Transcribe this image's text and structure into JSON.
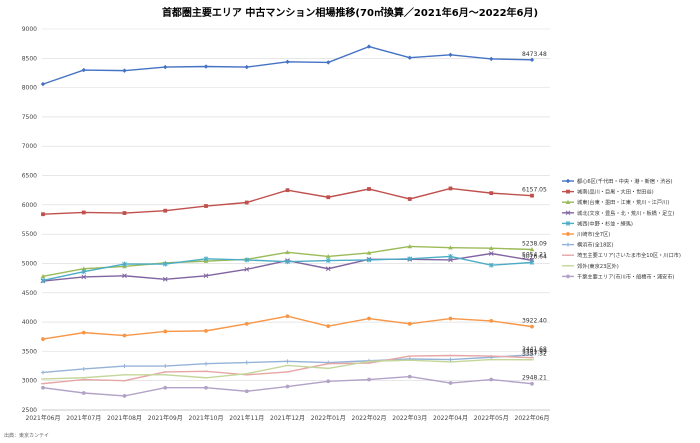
{
  "chart_data": {
    "type": "line",
    "title": "首都圏主要エリア 中古マンション相場推移(70㎡換算／2021年6月～2022年6月)",
    "xlabel": "",
    "ylabel": "",
    "ylim": [
      2500,
      9000
    ],
    "yticks": [
      "2500",
      "3000",
      "3500",
      "4000",
      "4500",
      "5000",
      "5500",
      "6000",
      "6500",
      "7000",
      "7500",
      "8000",
      "8500",
      "9000"
    ],
    "grid": true,
    "legend_position": "right",
    "categories": [
      "2021年06月",
      "2021年07月",
      "2021年08月",
      "2021年09月",
      "2021年10月",
      "2021年11月",
      "2021年12月",
      "2022年01月",
      "2022年02月",
      "2022年03月",
      "2022年04月",
      "2022年05月",
      "2022年06月"
    ],
    "series": [
      {
        "name": "都心6区(千代田・中央・港・新宿・渋谷)",
        "color": "#4472c4",
        "marker": "diamond",
        "values": [
          8060,
          8300,
          8290,
          8350,
          8360,
          8350,
          8440,
          8430,
          8700,
          8510,
          8560,
          8490,
          8473.48
        ],
        "end_label": "8473.48"
      },
      {
        "name": "城南(品川・目黒・大田・世田谷)",
        "color": "#c0504d",
        "marker": "square",
        "values": [
          5840,
          5870,
          5860,
          5900,
          5980,
          6040,
          6250,
          6130,
          6270,
          6100,
          6280,
          6200,
          6157.05
        ],
        "end_label": "6157.05"
      },
      {
        "name": "城東(台東・墨田・江東・荒川・江戸川)",
        "color": "#9bbb59",
        "marker": "triangle",
        "values": [
          4780,
          4910,
          4950,
          5010,
          5040,
          5070,
          5190,
          5120,
          5180,
          5290,
          5270,
          5260,
          5238.09
        ],
        "end_label": "5238.09"
      },
      {
        "name": "城北(文京・豊島・北・荒川・板橋・足立)",
        "color": "#8064a2",
        "marker": "x",
        "values": [
          4700,
          4770,
          4790,
          4730,
          4790,
          4900,
          5050,
          4910,
          5070,
          5070,
          5060,
          5170,
          5054.21
        ],
        "end_label": "5054.21"
      },
      {
        "name": "城西(中野・杉並・練馬)",
        "color": "#4bacc6",
        "marker": "star",
        "values": [
          4710,
          4860,
          4990,
          4990,
          5080,
          5060,
          5030,
          5050,
          5060,
          5080,
          5120,
          4970,
          5016.64
        ],
        "end_label": "5016.64"
      },
      {
        "name": "川崎市(全7区)",
        "color": "#f79646",
        "marker": "circle",
        "values": [
          3710,
          3820,
          3770,
          3840,
          3850,
          3970,
          4100,
          3930,
          4060,
          3970,
          4060,
          4020,
          3922.4
        ],
        "end_label": "3922.40"
      },
      {
        "name": "横浜市(全18区)",
        "color": "#95b3d7",
        "marker": "plus",
        "values": [
          3140,
          3200,
          3250,
          3250,
          3290,
          3310,
          3330,
          3310,
          3340,
          3370,
          3360,
          3400,
          3441.68
        ],
        "end_label": "3441.68"
      },
      {
        "name": "埼玉主要エリア(さいたま市全10区・川口市)",
        "color": "#e6a6a6",
        "marker": "dash",
        "values": [
          2950,
          3020,
          3000,
          3150,
          3160,
          3100,
          3150,
          3290,
          3300,
          3420,
          3430,
          3420,
          3391.99
        ],
        "end_label": "3391.99"
      },
      {
        "name": "郊外(東京23区外)",
        "color": "#c4d79b",
        "marker": "dash",
        "values": [
          3030,
          3050,
          3100,
          3100,
          3050,
          3120,
          3260,
          3210,
          3330,
          3350,
          3320,
          3360,
          3357.32
        ],
        "end_label": "3357.32"
      },
      {
        "name": "千葉主要エリア(市川市・船橋市・浦安市)",
        "color": "#b3a2c7",
        "marker": "circle",
        "values": [
          2880,
          2790,
          2740,
          2880,
          2880,
          2820,
          2900,
          2990,
          3020,
          3070,
          2960,
          3020,
          2948.21
        ],
        "end_label": "2948.21"
      }
    ],
    "annotations": [
      "出典：東京カンテイ"
    ]
  }
}
